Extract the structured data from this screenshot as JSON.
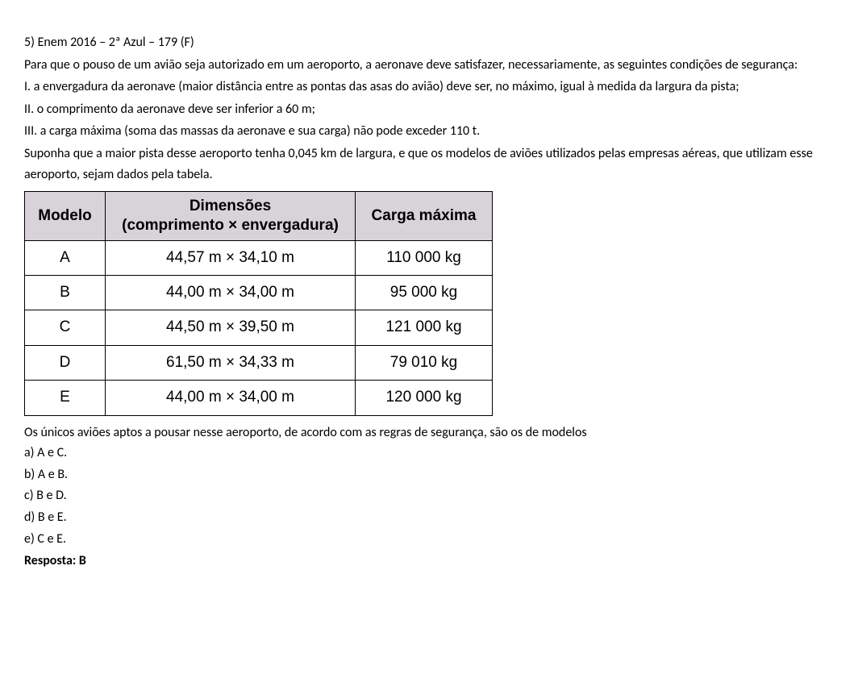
{
  "header": "5)  Enem 2016 – 2ª Azul – 179   (F)",
  "intro": "Para que o pouso de um avião seja autorizado em um aeroporto, a aeronave deve satisfazer, necessariamente, as seguintes condições de segurança:",
  "cond1": "I. a envergadura da aeronave (maior distância entre as pontas das asas do avião) deve ser, no máximo, igual à medida da largura da pista;",
  "cond2": "II. o comprimento da aeronave deve ser inferior a 60 m;",
  "cond3": "III. a carga máxima (soma das massas da aeronave e sua carga) não pode exceder 110 t.",
  "suponha": "Suponha que a maior pista desse aeroporto tenha 0,045 km de largura, e que os modelos de aviões utilizados pelas empresas aéreas, que utilizam esse aeroporto, sejam dados pela tabela.",
  "table": {
    "columns": {
      "modelo": "Modelo",
      "dims_line1": "Dimensões",
      "dims_line2": "(comprimento × envergadura)",
      "carga": "Carga máxima"
    },
    "rows": [
      {
        "modelo": "A",
        "dims": "44,57 m × 34,10 m",
        "carga": "110 000 kg"
      },
      {
        "modelo": "B",
        "dims": "44,00 m × 34,00 m",
        "carga": "95 000 kg"
      },
      {
        "modelo": "C",
        "dims": "44,50 m × 39,50 m",
        "carga": "121 000 kg"
      },
      {
        "modelo": "D",
        "dims": "61,50 m × 34,33 m",
        "carga": "79 010 kg"
      },
      {
        "modelo": "E",
        "dims": "44,00 m × 34,00 m",
        "carga": "120 000 kg"
      }
    ],
    "header_bg": "#d8d3d9",
    "border_color": "#000000",
    "cell_fontsize": 19,
    "font_family": "Arial"
  },
  "post_table": "Os únicos aviões aptos a pousar nesse aeroporto, de acordo com as regras de segurança, são os de modelos",
  "options": {
    "a": "a) A e C.",
    "b": "b) A e B.",
    "c": "c) B e D.",
    "d": "d) B e E.",
    "e": "e) C e E."
  },
  "answer": "Resposta: B",
  "colors": {
    "background": "#ffffff",
    "text": "#000000"
  },
  "layout": {
    "body_fontsize": 16,
    "line_height": 1.6
  }
}
